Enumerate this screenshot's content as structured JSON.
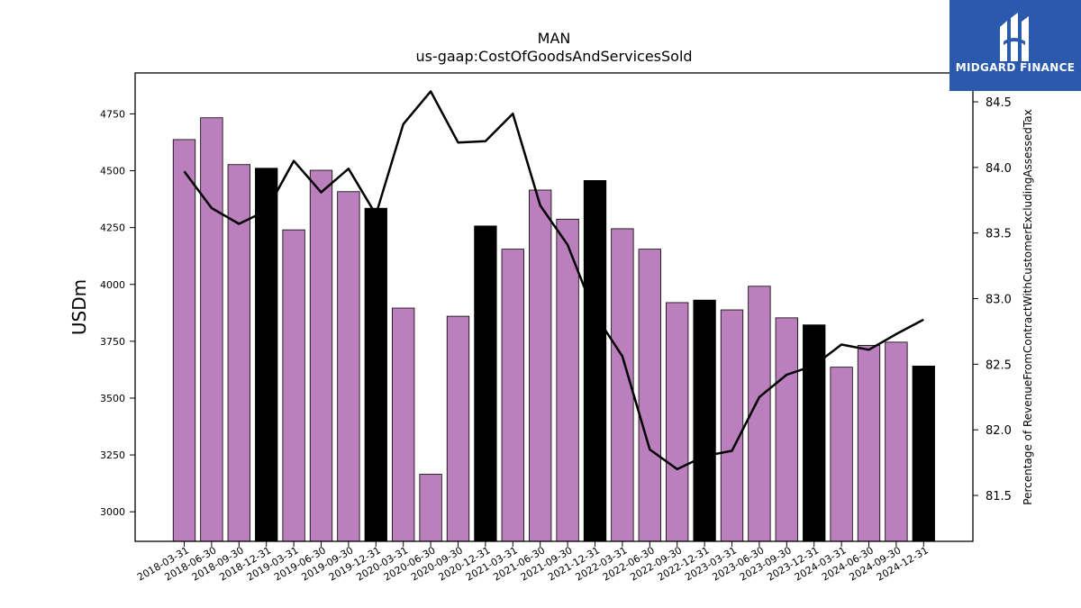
{
  "chart_data": {
    "type": "bar",
    "title": "MAN",
    "subtitle": "us-gaap:CostOfGoodsAndServicesSold",
    "ylabel": "USDm",
    "y2label": "Percentage of RevenueFromContractWithCustomerExcludingAssessedTax",
    "ylim": [
      2870,
      4930
    ],
    "y2lim": [
      81.15,
      84.72
    ],
    "yticks": [
      3000,
      3250,
      3500,
      3750,
      4000,
      4250,
      4500,
      4750
    ],
    "y2ticks": [
      "81.5",
      "82.0",
      "82.5",
      "83.0",
      "83.5",
      "84.0",
      "84.5"
    ],
    "categories": [
      "2018-03-31",
      "2018-06-30",
      "2018-09-30",
      "2018-12-31",
      "2019-03-31",
      "2019-06-30",
      "2019-09-30",
      "2019-12-31",
      "2020-03-31",
      "2020-06-30",
      "2020-09-30",
      "2020-12-31",
      "2021-03-31",
      "2021-06-30",
      "2021-09-30",
      "2021-12-31",
      "2022-03-31",
      "2022-06-30",
      "2022-09-30",
      "2022-12-31",
      "2023-03-31",
      "2023-06-30",
      "2023-09-30",
      "2023-12-31",
      "2024-03-31",
      "2024-06-30",
      "2024-09-30",
      "2024-12-31"
    ],
    "series": [
      {
        "type": "bar",
        "values": [
          4637,
          4733,
          4527,
          4511,
          4240,
          4502,
          4408,
          4335,
          3896,
          3165,
          3860,
          4257,
          4155,
          4415,
          4287,
          4457,
          4245,
          4155,
          3920,
          3931,
          3888,
          3992,
          3853,
          3822,
          3636,
          3732,
          3746,
          3641
        ],
        "colors": [
          "#bb7fbd",
          "#000000"
        ],
        "highlight_every": 4
      },
      {
        "type": "line",
        "axis": "right",
        "color": "#000000",
        "values": [
          83.97,
          83.69,
          83.57,
          83.67,
          84.05,
          83.81,
          83.99,
          83.64,
          84.33,
          84.58,
          84.19,
          84.2,
          84.41,
          83.71,
          83.41,
          82.88,
          82.56,
          81.85,
          81.7,
          81.8,
          81.84,
          82.25,
          82.42,
          82.49,
          82.65,
          82.61,
          82.73,
          82.84
        ]
      }
    ]
  },
  "logo": {
    "text": "MIDGARD FINANCE",
    "color": "#2a59ae"
  }
}
